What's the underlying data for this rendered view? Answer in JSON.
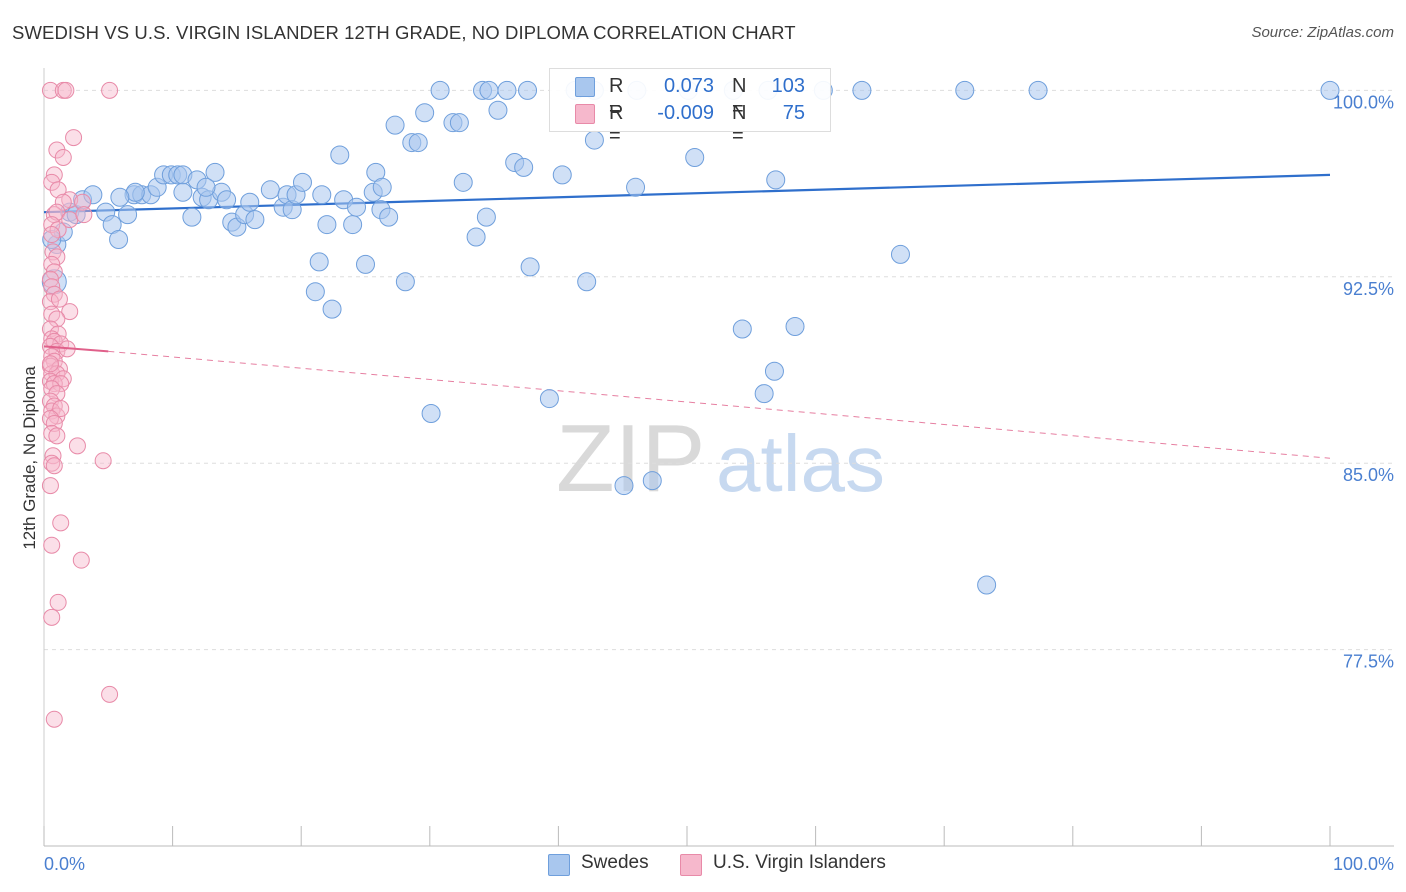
{
  "header": {
    "title": "SWEDISH VS U.S. VIRGIN ISLANDER 12TH GRADE, NO DIPLOMA CORRELATION CHART",
    "source": "Source: ZipAtlas.com"
  },
  "watermark": {
    "zip": "ZIP",
    "atlas": "atlas"
  },
  "legend": {
    "rows": [
      {
        "r_label": "R =",
        "r_value": "0.073",
        "n_label": "N =",
        "n_value": "103"
      },
      {
        "r_label": "R =",
        "r_value": "-0.009",
        "n_label": "N =",
        "n_value": "75"
      }
    ]
  },
  "bottom_legend": {
    "series0": "Swedes",
    "series1": "U.S. Virgin Islanders"
  },
  "colors": {
    "blue_fill": "#a9c7ee",
    "blue_stroke": "#6f9fdc",
    "blue_line": "#2f6fcc",
    "pink_fill": "#f6b8cc",
    "pink_stroke": "#e88aa8",
    "pink_line": "#e0608a",
    "axis_text": "#4a7fd0",
    "grid": "#dddddd"
  },
  "chart_data": {
    "type": "scatter",
    "title": "SWEDISH VS U.S. VIRGIN ISLANDER 12TH GRADE, NO DIPLOMA CORRELATION CHART",
    "xlabel": "",
    "ylabel": "12th Grade, No Diploma",
    "xlim": [
      0,
      100
    ],
    "ylim": [
      69.6,
      100.9
    ],
    "x_tick_labels": [
      "0.0%",
      "100.0%"
    ],
    "y_ticks": [
      77.5,
      85.0,
      92.5,
      100.0
    ],
    "y_tick_labels": [
      "77.5%",
      "85.0%",
      "92.5%",
      "100.0%"
    ],
    "grid": true,
    "legend_position": "top-center",
    "series": [
      {
        "name": "Swedes",
        "r": 0.073,
        "n": 103,
        "trend": {
          "x": [
            0,
            100
          ],
          "y": [
            95.1,
            96.6
          ]
        },
        "points": [
          [
            0.8,
            92.3
          ],
          [
            1.0,
            93.8
          ],
          [
            1.5,
            94.3
          ],
          [
            2.0,
            95.1
          ],
          [
            2.5,
            95.0
          ],
          [
            3.0,
            95.6
          ],
          [
            3.8,
            95.8
          ],
          [
            4.8,
            95.1
          ],
          [
            5.3,
            94.6
          ],
          [
            5.8,
            94.0
          ],
          [
            6.5,
            95.0
          ],
          [
            7.0,
            95.8
          ],
          [
            7.6,
            95.8
          ],
          [
            8.3,
            95.8
          ],
          [
            8.8,
            96.1
          ],
          [
            9.3,
            96.6
          ],
          [
            9.9,
            96.6
          ],
          [
            10.4,
            96.6
          ],
          [
            10.8,
            96.6
          ],
          [
            10.8,
            95.9
          ],
          [
            11.5,
            94.9
          ],
          [
            11.9,
            96.4
          ],
          [
            12.3,
            95.7
          ],
          [
            12.8,
            95.6
          ],
          [
            13.3,
            96.7
          ],
          [
            13.8,
            95.9
          ],
          [
            14.2,
            95.6
          ],
          [
            14.6,
            94.7
          ],
          [
            15.0,
            94.5
          ],
          [
            15.6,
            95.0
          ],
          [
            16.0,
            95.5
          ],
          [
            17.6,
            96.0
          ],
          [
            18.6,
            95.3
          ],
          [
            18.9,
            95.8
          ],
          [
            19.3,
            95.2
          ],
          [
            19.6,
            95.8
          ],
          [
            20.1,
            96.3
          ],
          [
            21.4,
            93.1
          ],
          [
            21.1,
            91.9
          ],
          [
            22.0,
            94.6
          ],
          [
            22.4,
            91.2
          ],
          [
            23.0,
            97.4
          ],
          [
            23.3,
            95.6
          ],
          [
            24.0,
            94.6
          ],
          [
            24.3,
            95.3
          ],
          [
            25.0,
            93.0
          ],
          [
            25.6,
            95.9
          ],
          [
            25.8,
            96.7
          ],
          [
            26.2,
            95.2
          ],
          [
            26.8,
            94.9
          ],
          [
            27.3,
            98.6
          ],
          [
            28.1,
            92.3
          ],
          [
            28.6,
            97.9
          ],
          [
            29.1,
            97.9
          ],
          [
            29.6,
            99.1
          ],
          [
            30.1,
            87.0
          ],
          [
            30.8,
            100.0
          ],
          [
            31.8,
            98.7
          ],
          [
            32.3,
            98.7
          ],
          [
            32.6,
            96.3
          ],
          [
            33.6,
            94.1
          ],
          [
            34.1,
            100.0
          ],
          [
            34.6,
            100.0
          ],
          [
            35.3,
            99.2
          ],
          [
            36.0,
            100.0
          ],
          [
            36.6,
            97.1
          ],
          [
            37.3,
            96.9
          ],
          [
            37.8,
            92.9
          ],
          [
            39.3,
            87.6
          ],
          [
            40.3,
            96.6
          ],
          [
            41.3,
            100.0
          ],
          [
            42.2,
            92.3
          ],
          [
            42.8,
            98.0
          ],
          [
            45.1,
            84.1
          ],
          [
            46.1,
            100.0
          ],
          [
            47.3,
            84.3
          ],
          [
            50.1,
            100.0
          ],
          [
            50.6,
            97.3
          ],
          [
            53.6,
            100.0
          ],
          [
            54.3,
            90.4
          ],
          [
            56.0,
            87.8
          ],
          [
            56.3,
            100.0
          ],
          [
            56.8,
            88.7
          ],
          [
            56.9,
            96.4
          ],
          [
            58.4,
            90.5
          ],
          [
            60.6,
            100.0
          ],
          [
            63.6,
            100.0
          ],
          [
            66.6,
            93.4
          ],
          [
            73.3,
            80.1
          ],
          [
            71.6,
            100.0
          ],
          [
            77.3,
            100.0
          ],
          [
            100.0,
            100.0
          ],
          [
            21.6,
            95.8
          ],
          [
            26.3,
            96.1
          ],
          [
            7.1,
            95.9
          ],
          [
            16.4,
            94.8
          ],
          [
            37.6,
            100.0
          ],
          [
            42.8,
            100.0
          ],
          [
            34.4,
            94.9
          ],
          [
            12.6,
            96.1
          ],
          [
            0.6,
            94.0
          ],
          [
            5.9,
            95.7
          ],
          [
            46.0,
            96.1
          ]
        ]
      },
      {
        "name": "U.S. Virgin Islanders",
        "r": -0.009,
        "n": 75,
        "trend": {
          "x": [
            0,
            5
          ],
          "y": [
            89.7,
            89.5
          ]
        },
        "trend_extended": {
          "x": [
            5,
            100
          ],
          "y": [
            89.5,
            85.2
          ]
        },
        "points": [
          [
            0.5,
            100.0
          ],
          [
            1.5,
            100.0
          ],
          [
            1.7,
            100.0
          ],
          [
            5.1,
            100.0
          ],
          [
            2.3,
            98.1
          ],
          [
            1.0,
            97.6
          ],
          [
            1.5,
            97.3
          ],
          [
            0.8,
            96.6
          ],
          [
            0.6,
            96.3
          ],
          [
            1.1,
            96.0
          ],
          [
            2.0,
            95.6
          ],
          [
            1.5,
            95.5
          ],
          [
            3.0,
            95.5
          ],
          [
            0.8,
            95.0
          ],
          [
            1.0,
            95.1
          ],
          [
            0.6,
            94.6
          ],
          [
            1.1,
            94.4
          ],
          [
            0.6,
            94.2
          ],
          [
            2.0,
            94.8
          ],
          [
            3.1,
            95.0
          ],
          [
            0.7,
            93.5
          ],
          [
            1.0,
            93.3
          ],
          [
            0.6,
            93.0
          ],
          [
            0.8,
            92.7
          ],
          [
            0.5,
            92.4
          ],
          [
            0.6,
            92.1
          ],
          [
            0.8,
            91.8
          ],
          [
            0.5,
            91.5
          ],
          [
            1.2,
            91.6
          ],
          [
            2.0,
            91.1
          ],
          [
            0.6,
            91.0
          ],
          [
            1.0,
            90.8
          ],
          [
            0.5,
            90.4
          ],
          [
            1.1,
            90.2
          ],
          [
            0.6,
            90.0
          ],
          [
            0.8,
            89.9
          ],
          [
            1.3,
            89.8
          ],
          [
            0.5,
            89.7
          ],
          [
            1.0,
            89.5
          ],
          [
            1.8,
            89.6
          ],
          [
            0.6,
            89.3
          ],
          [
            0.8,
            89.1
          ],
          [
            0.5,
            88.9
          ],
          [
            1.2,
            88.8
          ],
          [
            0.6,
            88.6
          ],
          [
            1.0,
            88.6
          ],
          [
            1.5,
            88.4
          ],
          [
            0.5,
            88.3
          ],
          [
            0.8,
            88.2
          ],
          [
            1.3,
            88.2
          ],
          [
            0.6,
            88.0
          ],
          [
            1.0,
            87.8
          ],
          [
            0.5,
            87.5
          ],
          [
            0.8,
            87.3
          ],
          [
            0.6,
            87.1
          ],
          [
            1.0,
            86.9
          ],
          [
            1.3,
            87.2
          ],
          [
            0.5,
            86.8
          ],
          [
            0.8,
            86.6
          ],
          [
            0.6,
            86.2
          ],
          [
            1.0,
            86.1
          ],
          [
            2.6,
            85.7
          ],
          [
            0.7,
            85.3
          ],
          [
            0.6,
            85.0
          ],
          [
            0.5,
            84.1
          ],
          [
            0.8,
            84.9
          ],
          [
            4.6,
            85.1
          ],
          [
            1.3,
            82.6
          ],
          [
            0.6,
            81.7
          ],
          [
            2.9,
            81.1
          ],
          [
            1.1,
            79.4
          ],
          [
            0.6,
            78.8
          ],
          [
            5.1,
            75.7
          ],
          [
            0.8,
            74.7
          ],
          [
            0.5,
            89.0
          ]
        ]
      }
    ]
  }
}
